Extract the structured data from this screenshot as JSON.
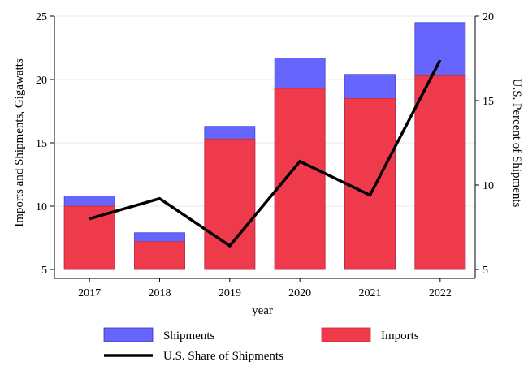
{
  "chart_data": {
    "type": "bar",
    "categories": [
      "2017",
      "2018",
      "2019",
      "2020",
      "2021",
      "2022"
    ],
    "xlabel": "year",
    "ylabel": "Imports and Shipments, Gigawatts",
    "y2label": "U.S. Percent of Shipments",
    "ylim": [
      5,
      25
    ],
    "y2lim": [
      5,
      20
    ],
    "yticks": [
      5,
      10,
      15,
      20,
      25
    ],
    "y2ticks": [
      5,
      10,
      15,
      20
    ],
    "grid": true,
    "legend_position": "bottom",
    "series": [
      {
        "name": "Shipments",
        "type": "bar",
        "color": "#6666ff",
        "values": [
          10.8,
          7.9,
          16.3,
          21.7,
          20.4,
          24.5
        ]
      },
      {
        "name": "Imports",
        "type": "bar",
        "color": "#ef3a4c",
        "values": [
          10.0,
          7.2,
          15.3,
          19.3,
          18.5,
          20.3
        ]
      },
      {
        "name": "U.S. Share of Shipments",
        "type": "line",
        "axis": "right",
        "color": "#000000",
        "values": [
          8.0,
          9.2,
          6.4,
          11.4,
          9.4,
          17.4
        ]
      }
    ]
  }
}
